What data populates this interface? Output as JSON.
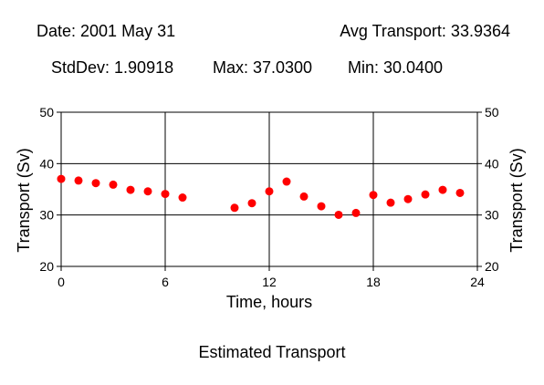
{
  "header": {
    "date": "Date: 2001 May 31",
    "avg": "Avg Transport: 33.9364",
    "stddev": "StdDev: 1.90918",
    "max": "Max: 37.0300",
    "min": "Min: 30.0400"
  },
  "caption": "Estimated Transport",
  "chart_data": {
    "type": "scatter",
    "title": "",
    "xlabel": "Time, hours",
    "ylabel": "Transport (Sv)",
    "ylabel_right": "Transport (Sv)",
    "xlim": [
      0,
      24
    ],
    "ylim": [
      20,
      50
    ],
    "xticks": [
      0,
      6,
      12,
      18,
      24
    ],
    "yticks": [
      20,
      30,
      40,
      50
    ],
    "grid": true,
    "marker_color": "#ff0000",
    "series": [
      {
        "x": [
          0,
          1,
          2,
          3,
          4,
          5,
          6,
          7,
          10,
          11,
          12,
          13,
          14,
          15,
          16,
          17,
          18,
          19,
          20,
          21,
          22,
          23
        ],
        "y": [
          37.03,
          36.7,
          36.2,
          35.9,
          34.9,
          34.6,
          34.1,
          33.4,
          31.4,
          32.3,
          34.6,
          36.5,
          33.6,
          31.7,
          30.04,
          30.4,
          33.9,
          32.4,
          33.1,
          34.0,
          34.9,
          34.3
        ]
      }
    ]
  }
}
